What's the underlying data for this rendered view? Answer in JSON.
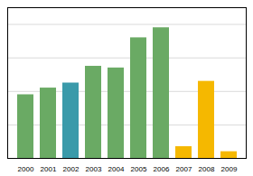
{
  "chart_data": {
    "type": "bar",
    "categories": [
      "2000",
      "2001",
      "2002",
      "2003",
      "2004",
      "2005",
      "2006",
      "2007",
      "2008",
      "2009"
    ],
    "values": [
      38,
      42,
      45,
      55,
      54,
      72,
      78,
      7,
      46,
      4
    ],
    "colors": [
      "#6aaa64",
      "#6aaa64",
      "#3a9aaa",
      "#6aaa64",
      "#6aaa64",
      "#6aaa64",
      "#6aaa64",
      "#f5b800",
      "#f5b800",
      "#f5b800"
    ],
    "ylim": [
      0,
      90
    ],
    "yticks": [
      20,
      40,
      60,
      80
    ],
    "grid": true,
    "tick_labels": "x"
  }
}
